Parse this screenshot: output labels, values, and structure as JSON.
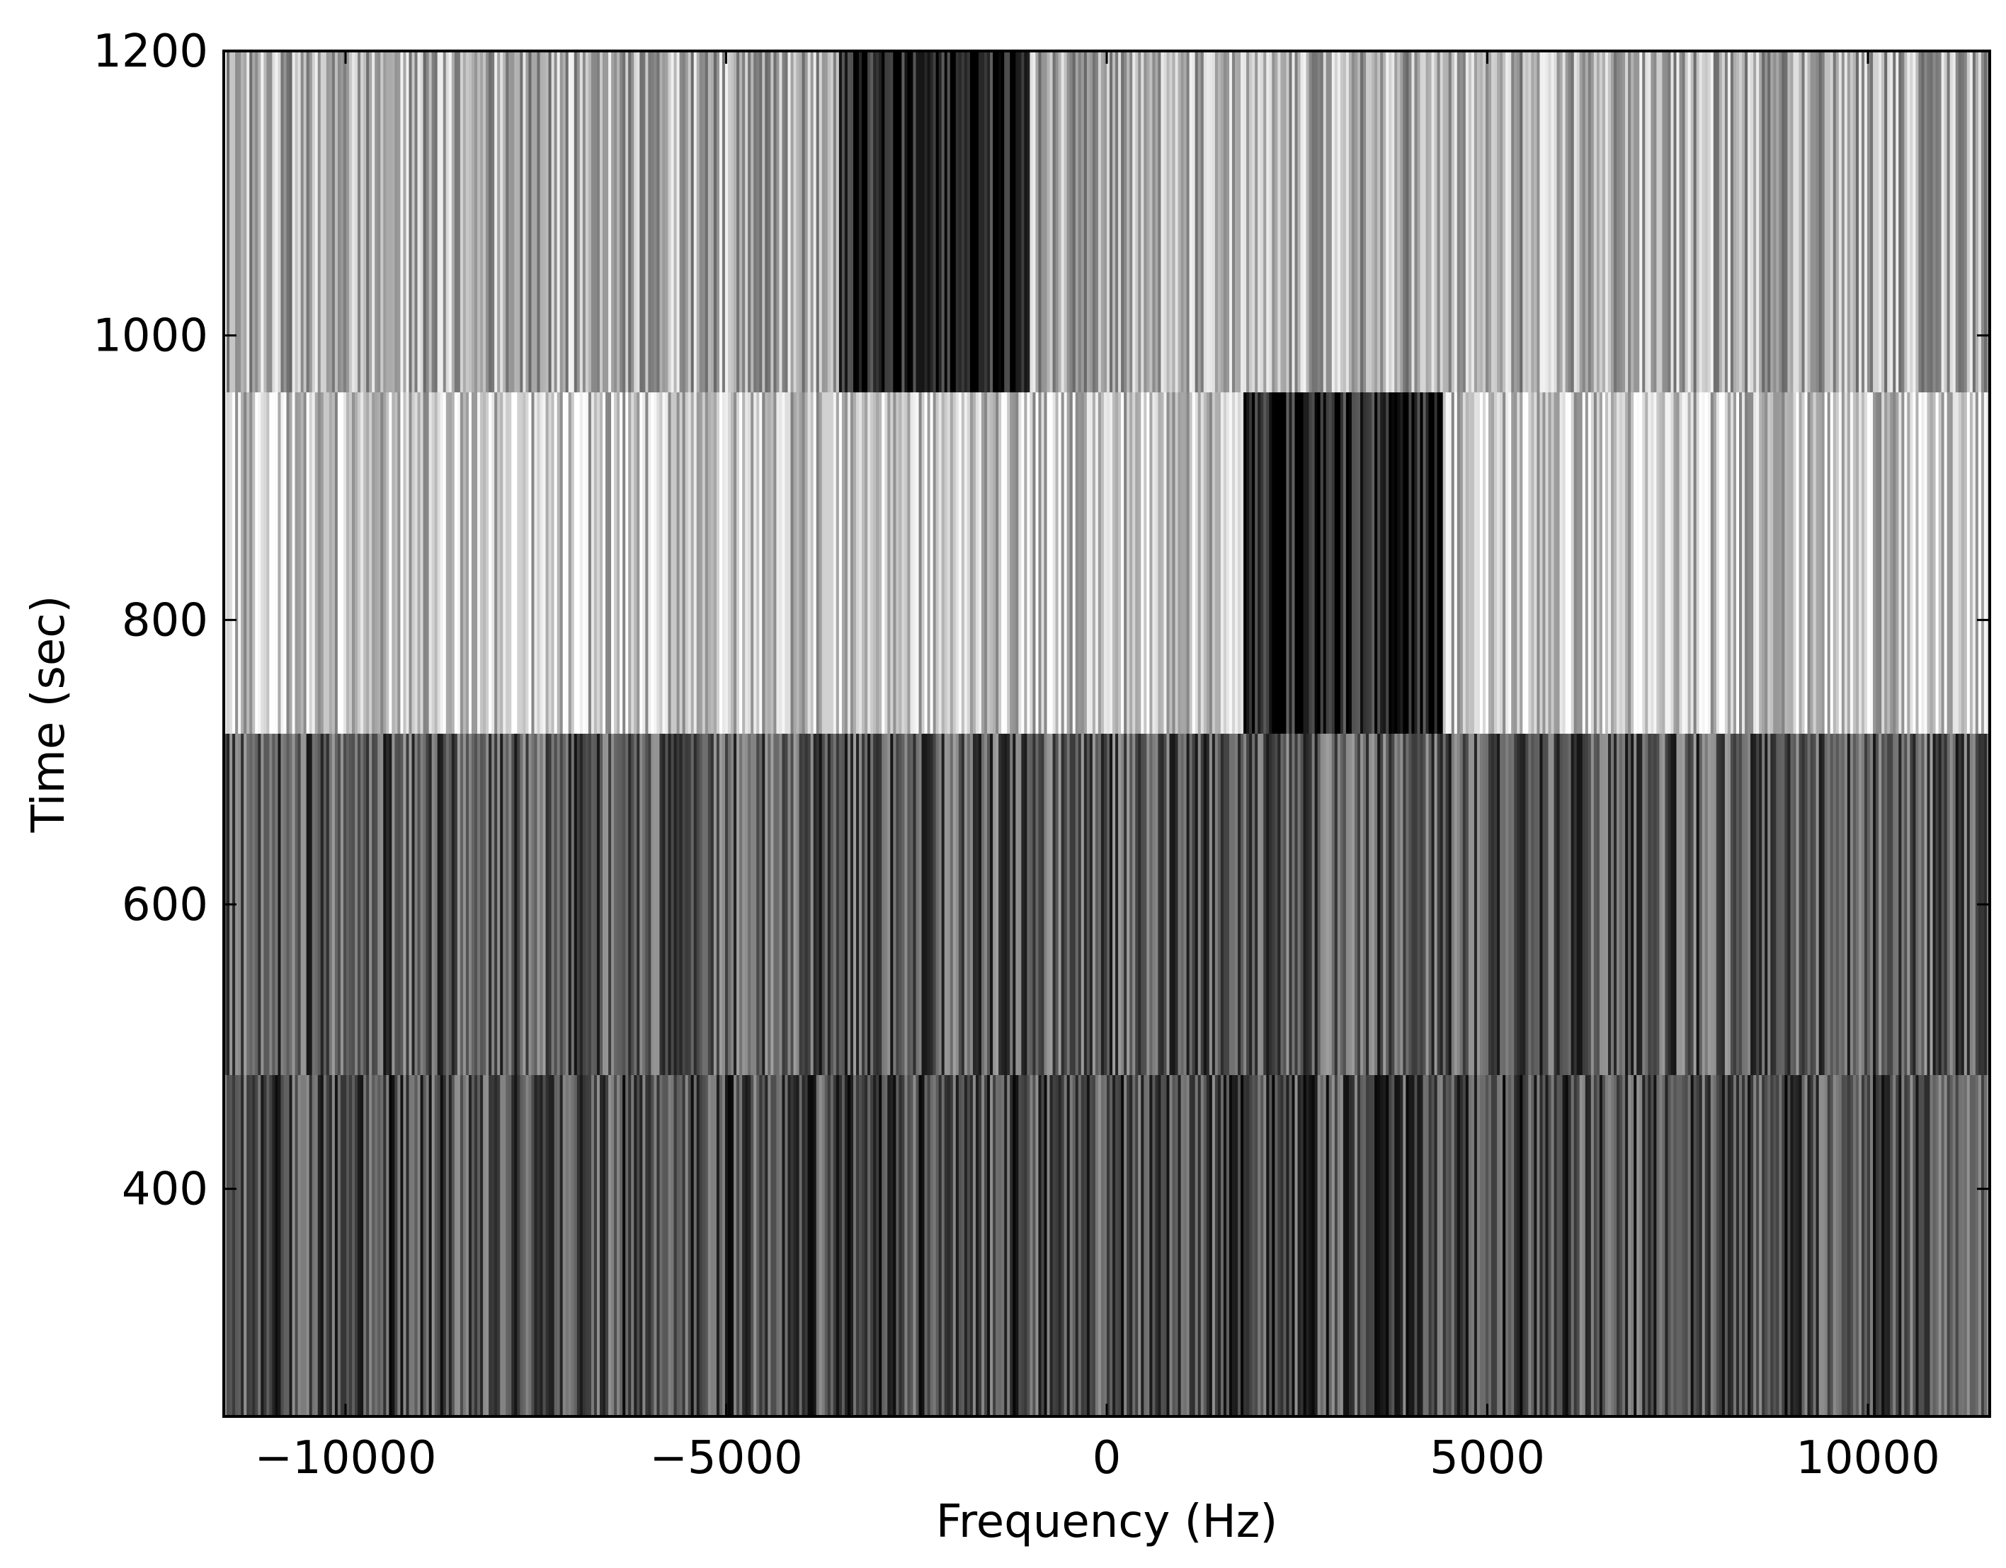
{
  "chart_data": {
    "type": "heatmap",
    "title": "",
    "xlabel": "Frequency (Hz)",
    "ylabel": "Time (sec)",
    "xlim": [
      -11600,
      11600
    ],
    "ylim": [
      240,
      1200
    ],
    "x_ticks": [
      -10000,
      -5000,
      0,
      5000,
      10000
    ],
    "x_tick_labels": [
      "−10000",
      "−5000",
      "0",
      "5000",
      "10000"
    ],
    "y_ticks": [
      400,
      600,
      800,
      1000,
      1200
    ],
    "y_tick_labels": [
      "400",
      "600",
      "800",
      "1000",
      "1200"
    ],
    "colormap": "grayscale (dark = high, light = low)",
    "grid": false,
    "legend": "none",
    "rows": [
      {
        "t_start": 240,
        "t_end": 480,
        "base_shade": 0.3,
        "signal": null
      },
      {
        "t_start": 480,
        "t_end": 720,
        "base_shade": 0.35,
        "signal": null
      },
      {
        "t_start": 720,
        "t_end": 960,
        "base_shade": 0.78,
        "signal": {
          "f_start": 1800,
          "f_end": 4400,
          "shade": 0.12
        }
      },
      {
        "t_start": 960,
        "t_end": 1200,
        "base_shade": 0.68,
        "signal": {
          "f_start": -3500,
          "f_end": -1000,
          "shade": 0.1
        }
      }
    ],
    "colors": {
      "axis": "#000000",
      "background": "#ffffff"
    }
  }
}
